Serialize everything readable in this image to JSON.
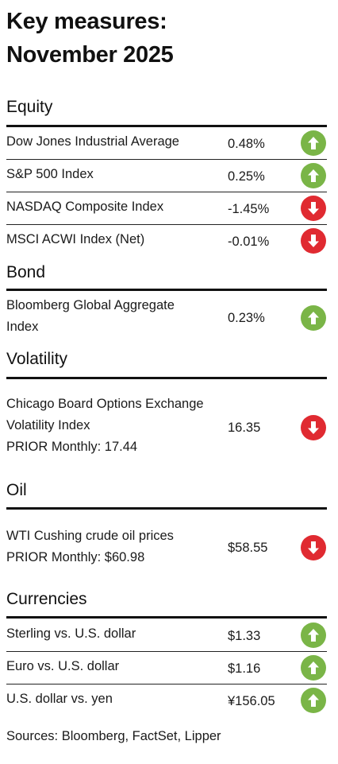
{
  "title": "Key measures:\nNovember 2025",
  "sections": [
    {
      "name": "Equity",
      "rows": [
        {
          "label": "Dow Jones Industrial Average",
          "value": "0.48%",
          "direction": "up"
        },
        {
          "label": "S&P 500 Index",
          "value": "0.25%",
          "direction": "up"
        },
        {
          "label": "NASDAQ Composite Index",
          "value": "-1.45%",
          "direction": "down"
        },
        {
          "label": "MSCI ACWI Index (Net)",
          "value": "-0.01%",
          "direction": "down"
        }
      ]
    },
    {
      "name": "Bond",
      "rows": [
        {
          "label": "Bloomberg Global Aggregate\nIndex",
          "value": "0.23%",
          "direction": "up"
        }
      ]
    },
    {
      "name": "Volatility",
      "rows": [
        {
          "label": "Chicago Board Options Exchange\nVolatility Index\nPRIOR Monthly: 17.44",
          "value": "16.35",
          "direction": "down"
        }
      ]
    },
    {
      "name": "Oil",
      "rows": [
        {
          "label": "WTI Cushing crude oil prices\nPRIOR Monthly: $60.98",
          "value": "$58.55",
          "direction": "down"
        }
      ]
    },
    {
      "name": "Currencies",
      "rows": [
        {
          "label": "Sterling vs. U.S. dollar",
          "value": "$1.33",
          "direction": "up"
        },
        {
          "label": "Euro vs. U.S. dollar",
          "value": "$1.16",
          "direction": "up"
        },
        {
          "label": "U.S. dollar vs. yen",
          "value": "¥156.05",
          "direction": "up"
        }
      ]
    }
  ],
  "sources": "Sources: Bloomberg, FactSet, Lipper",
  "colors": {
    "up": "#7ab547",
    "down": "#e02a31",
    "rule": "#111111"
  },
  "icons": {
    "up": "arrow-up-icon",
    "down": "arrow-down-icon"
  }
}
